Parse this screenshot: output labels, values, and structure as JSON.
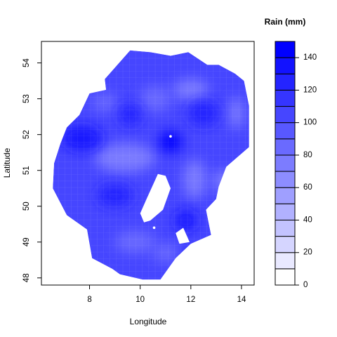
{
  "chart_data": {
    "type": "heatmap",
    "xlabel": "Longitude",
    "ylabel": "Latitude",
    "xlim": [
      6.1,
      14.5
    ],
    "ylim": [
      47.8,
      54.6
    ],
    "x_ticks": [
      8,
      10,
      12,
      14
    ],
    "y_ticks": [
      48,
      49,
      50,
      51,
      52,
      53,
      54
    ],
    "legend": {
      "title": "Rain (mm)",
      "levels": [
        0,
        10,
        20,
        30,
        40,
        50,
        60,
        70,
        80,
        90,
        100,
        110,
        120,
        130,
        140,
        150
      ],
      "tick_values": [
        0,
        20,
        40,
        60,
        80,
        100,
        120,
        140
      ],
      "colors": [
        "#ffffff",
        "#e9e9ff",
        "#d5d5ff",
        "#c3c3ff",
        "#b1b1ff",
        "#9f9fff",
        "#8d8dff",
        "#7c7cff",
        "#6a6aff",
        "#5858ff",
        "#4646ff",
        "#3535ff",
        "#2424ff",
        "#1212ff",
        "#0000ff"
      ]
    },
    "region_outline": [
      [
        7.6,
        52.55
      ],
      [
        8.0,
        53.15
      ],
      [
        8.65,
        53.25
      ],
      [
        8.6,
        53.55
      ],
      [
        9.1,
        53.95
      ],
      [
        9.6,
        54.35
      ],
      [
        10.4,
        54.3
      ],
      [
        11.2,
        54.2
      ],
      [
        11.9,
        54.3
      ],
      [
        12.65,
        53.95
      ],
      [
        13.1,
        53.95
      ],
      [
        13.75,
        53.7
      ],
      [
        14.1,
        53.5
      ],
      [
        14.3,
        52.8
      ],
      [
        14.3,
        51.65
      ],
      [
        13.4,
        51.1
      ],
      [
        13.1,
        50.55
      ],
      [
        13.0,
        50.2
      ],
      [
        12.6,
        49.9
      ],
      [
        12.8,
        49.2
      ],
      [
        12.0,
        48.95
      ],
      [
        11.4,
        48.55
      ],
      [
        10.8,
        47.95
      ],
      [
        10.1,
        47.95
      ],
      [
        9.2,
        48.1
      ],
      [
        8.9,
        48.25
      ],
      [
        8.1,
        48.55
      ],
      [
        7.9,
        49.35
      ],
      [
        7.1,
        49.75
      ],
      [
        6.55,
        50.5
      ],
      [
        6.6,
        51.2
      ],
      [
        6.85,
        51.75
      ],
      [
        7.1,
        52.2
      ]
    ],
    "gaps": [
      [
        [
          10.4,
          49.6
        ],
        [
          10.9,
          49.9
        ],
        [
          11.2,
          50.5
        ],
        [
          11.0,
          50.85
        ],
        [
          10.7,
          50.9
        ],
        [
          10.25,
          50.2
        ],
        [
          10.0,
          49.8
        ],
        [
          10.15,
          49.55
        ]
      ],
      [
        [
          11.55,
          48.95
        ],
        [
          11.95,
          49.0
        ],
        [
          11.7,
          49.4
        ],
        [
          11.4,
          49.25
        ]
      ]
    ],
    "dark_areas": [
      {
        "x": 7.7,
        "y": 51.9,
        "rx": 0.8,
        "ry": 0.35,
        "value": 130
      },
      {
        "x": 11.2,
        "y": 51.8,
        "rx": 0.45,
        "ry": 0.3,
        "value": 140
      },
      {
        "x": 9.6,
        "y": 52.55,
        "rx": 0.45,
        "ry": 0.3,
        "value": 125
      },
      {
        "x": 12.5,
        "y": 52.6,
        "rx": 0.6,
        "ry": 0.35,
        "value": 120
      },
      {
        "x": 9.0,
        "y": 50.3,
        "rx": 0.7,
        "ry": 0.3,
        "value": 125
      },
      {
        "x": 11.8,
        "y": 49.6,
        "rx": 0.45,
        "ry": 0.3,
        "value": 130
      },
      {
        "x": 12.2,
        "y": 48.5,
        "rx": 0.4,
        "ry": 0.25,
        "value": 135
      }
    ],
    "light_areas": [
      {
        "x": 9.4,
        "y": 51.35,
        "rx": 1.2,
        "ry": 0.4,
        "value": 70
      },
      {
        "x": 10.6,
        "y": 53.0,
        "rx": 0.6,
        "ry": 0.35,
        "value": 80
      },
      {
        "x": 12.0,
        "y": 53.25,
        "rx": 0.7,
        "ry": 0.3,
        "value": 75
      },
      {
        "x": 12.15,
        "y": 50.75,
        "rx": 0.45,
        "ry": 0.55,
        "value": 70
      },
      {
        "x": 13.3,
        "y": 50.7,
        "rx": 0.45,
        "ry": 0.3,
        "value": 75
      },
      {
        "x": 9.8,
        "y": 49.0,
        "rx": 0.8,
        "ry": 0.3,
        "value": 80
      },
      {
        "x": 11.0,
        "y": 48.7,
        "rx": 0.5,
        "ry": 0.25,
        "value": 85
      },
      {
        "x": 13.8,
        "y": 52.6,
        "rx": 0.3,
        "ry": 0.45,
        "value": 70
      },
      {
        "x": 8.6,
        "y": 52.9,
        "rx": 0.5,
        "ry": 0.25,
        "value": 85
      }
    ],
    "white_spots": [
      [
        11.2,
        51.95
      ],
      [
        10.55,
        49.4
      ]
    ]
  }
}
